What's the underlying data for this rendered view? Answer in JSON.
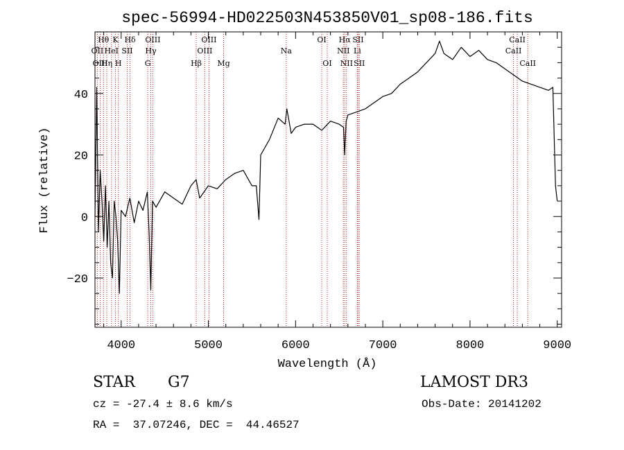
{
  "chart_data": {
    "type": "line",
    "title": "spec-56994-HD022503N453850V01_sp08-186.fits",
    "xlabel": "Wavelength (Å)",
    "ylabel": "Flux (relative)",
    "xlim": [
      3700,
      9050
    ],
    "ylim": [
      -36,
      60
    ],
    "xticks": [
      4000,
      5000,
      6000,
      7000,
      8000,
      9000
    ],
    "yticks": [
      -20,
      0,
      20,
      40
    ],
    "grid": false,
    "series": [
      {
        "name": "flux",
        "x": [
          3700,
          3720,
          3740,
          3760,
          3780,
          3800,
          3820,
          3840,
          3860,
          3880,
          3900,
          3920,
          3940,
          3960,
          3980,
          4000,
          4050,
          4100,
          4150,
          4200,
          4250,
          4300,
          4320,
          4340,
          4360,
          4400,
          4500,
          4600,
          4700,
          4800,
          4860,
          4900,
          5000,
          5100,
          5200,
          5300,
          5400,
          5500,
          5550,
          5580,
          5600,
          5700,
          5800,
          5880,
          5900,
          5950,
          6000,
          6100,
          6200,
          6300,
          6400,
          6500,
          6550,
          6563,
          6580,
          6600,
          6700,
          6800,
          6900,
          7000,
          7100,
          7200,
          7300,
          7400,
          7500,
          7600,
          7650,
          7700,
          7800,
          7900,
          8000,
          8100,
          8200,
          8300,
          8400,
          8500,
          8600,
          8700,
          8800,
          8900,
          8950,
          8980,
          9000
        ],
        "y": [
          0,
          42,
          -5,
          15,
          5,
          -8,
          10,
          -10,
          5,
          -15,
          -20,
          5,
          0,
          -8,
          -25,
          2,
          0,
          6,
          -2,
          5,
          2,
          8,
          -5,
          -24,
          5,
          3,
          8,
          6,
          4,
          10,
          12,
          6,
          10,
          9,
          12,
          14,
          15,
          10,
          10,
          -1,
          20,
          25,
          32,
          30,
          35,
          27,
          29,
          30,
          30,
          28,
          31,
          30,
          29,
          20,
          31,
          33,
          34,
          35,
          37,
          39,
          40,
          43,
          45,
          47,
          50,
          53,
          57,
          53,
          51,
          55,
          52,
          54,
          51,
          50,
          48,
          46,
          44,
          43,
          42,
          41,
          42,
          10,
          5
        ]
      }
    ],
    "spectral_lines": [
      {
        "label": "Hθ",
        "wavelength": 3797,
        "row": 1
      },
      {
        "label": "K",
        "wavelength": 3934,
        "row": 1
      },
      {
        "label": "Hδ",
        "wavelength": 4102,
        "row": 1
      },
      {
        "label": "OIII",
        "wavelength": 4363,
        "row": 1
      },
      {
        "label": "OIII",
        "wavelength": 5007,
        "row": 1
      },
      {
        "label": "OI",
        "wavelength": 6300,
        "row": 1
      },
      {
        "label": "Hα",
        "wavelength": 6563,
        "row": 1
      },
      {
        "label": "SII",
        "wavelength": 6717,
        "row": 1
      },
      {
        "label": "CaII",
        "wavelength": 8542,
        "row": 1
      },
      {
        "label": "OII",
        "wavelength": 3727,
        "row": 2
      },
      {
        "label": "HeI",
        "wavelength": 3889,
        "row": 2
      },
      {
        "label": "SII",
        "wavelength": 4070,
        "row": 2
      },
      {
        "label": "Hγ",
        "wavelength": 4340,
        "row": 2
      },
      {
        "label": "OIII",
        "wavelength": 4959,
        "row": 2
      },
      {
        "label": "Na",
        "wavelength": 5893,
        "row": 2
      },
      {
        "label": "NII",
        "wavelength": 6548,
        "row": 2
      },
      {
        "label": "Li",
        "wavelength": 6708,
        "row": 2
      },
      {
        "label": "CaII",
        "wavelength": 8498,
        "row": 2
      },
      {
        "label": "OIII",
        "wavelength": 3760,
        "row": 3
      },
      {
        "label": "Hη",
        "wavelength": 3835,
        "row": 3
      },
      {
        "label": "H",
        "wavelength": 3968,
        "row": 3
      },
      {
        "label": "G",
        "wavelength": 4305,
        "row": 3
      },
      {
        "label": "Hβ",
        "wavelength": 4861,
        "row": 3
      },
      {
        "label": "Mg",
        "wavelength": 5175,
        "row": 3
      },
      {
        "label": "OI",
        "wavelength": 6363,
        "row": 3
      },
      {
        "label": "NII",
        "wavelength": 6584,
        "row": 3
      },
      {
        "label": "SII",
        "wavelength": 6731,
        "row": 3
      },
      {
        "label": "CaII",
        "wavelength": 8662,
        "row": 3
      }
    ]
  },
  "info": {
    "object_class": "STAR",
    "subclass": "G7",
    "redshift": "cz = -27.4 ± 8.6 km/s",
    "coords": "RA =  37.07246, DEC =  44.46527",
    "survey": "LAMOST DR3",
    "obs_date": "Obs-Date: 20141202"
  },
  "colors": {
    "line": "#000000",
    "marker": "#b22222",
    "background": "#ffffff"
  }
}
